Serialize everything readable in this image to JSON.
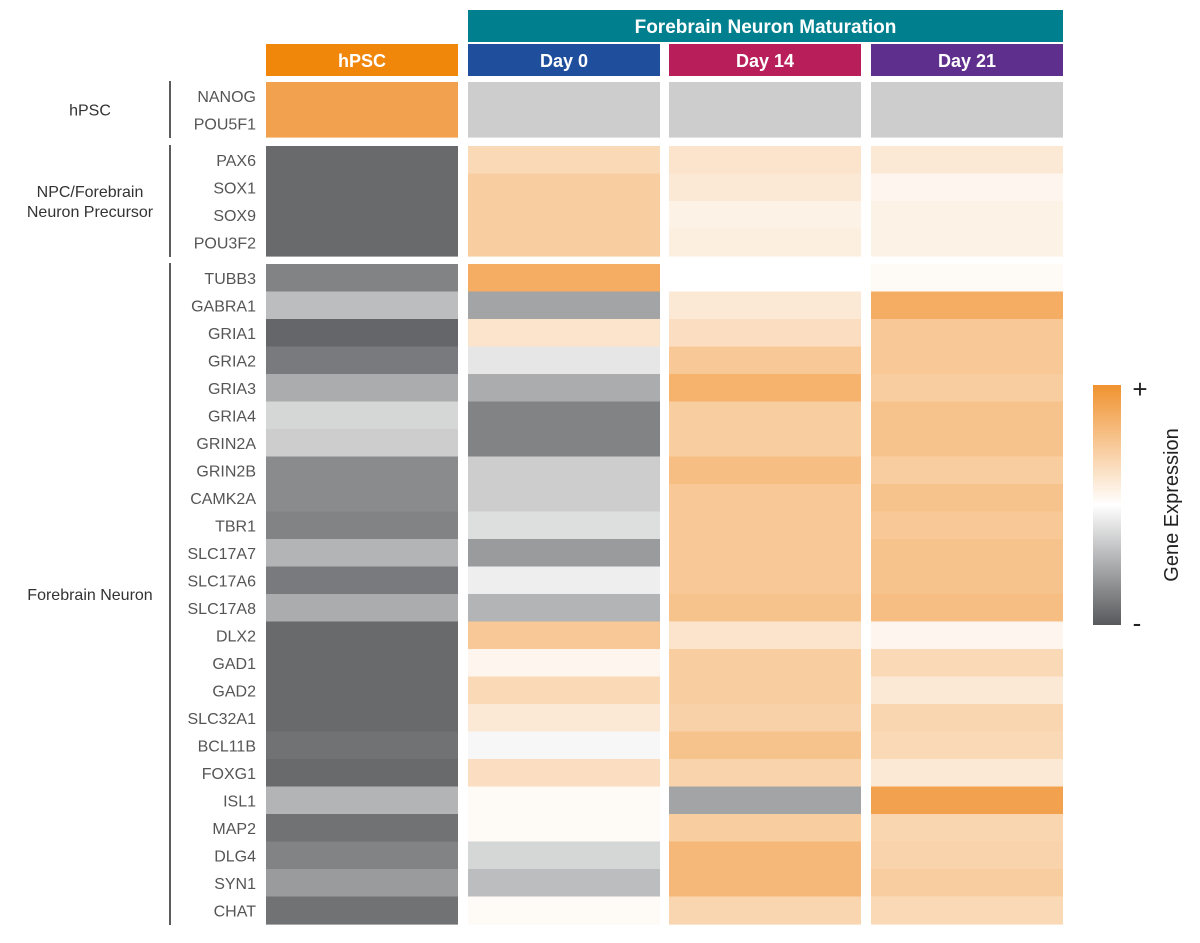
{
  "chart_data": {
    "type": "heatmap",
    "span_header": {
      "label": "Forebrain Neuron Maturation",
      "color": "#00808f"
    },
    "columns": [
      {
        "label": "hPSC",
        "color": "#f0860a"
      },
      {
        "label": "Day 0",
        "color": "#1f4f9c"
      },
      {
        "label": "Day 14",
        "color": "#b81f5a"
      },
      {
        "label": "Day 21",
        "color": "#5e2f8c"
      }
    ],
    "groups": [
      {
        "label": "hPSC",
        "genes": [
          "NANOG",
          "POU5F1"
        ]
      },
      {
        "label": "NPC/Forebrain\nNeuron Precursor",
        "genes": [
          "PAX6",
          "SOX1",
          "SOX9",
          "POU3F2"
        ]
      },
      {
        "label": "Forebrain Neuron",
        "genes": [
          "TUBB3",
          "GABRA1",
          "GRIA1",
          "GRIA2",
          "GRIA3",
          "GRIA4",
          "GRIN2A",
          "GRIN2B",
          "CAMK2A",
          "TBR1",
          "SLC17A7",
          "SLC17A6",
          "SLC17A8",
          "DLX2",
          "GAD1",
          "GAD2",
          "SLC32A1",
          "BCL11B",
          "FOXG1",
          "ISL1",
          "MAP2",
          "DLG4",
          "SYN1",
          "CHAT"
        ]
      }
    ],
    "values": [
      [
        0.85,
        -0.3,
        -0.3,
        -0.3
      ],
      [
        0.85,
        -0.3,
        -0.3,
        -0.3
      ],
      [
        -0.9,
        0.35,
        0.25,
        0.2
      ],
      [
        -0.9,
        0.45,
        0.2,
        0.08
      ],
      [
        -0.9,
        0.45,
        0.12,
        0.12
      ],
      [
        -0.9,
        0.45,
        0.15,
        0.12
      ],
      [
        -0.75,
        0.75,
        0.0,
        0.05
      ],
      [
        -0.4,
        -0.55,
        0.2,
        0.75
      ],
      [
        -0.92,
        0.25,
        0.3,
        0.5
      ],
      [
        -0.8,
        -0.15,
        0.5,
        0.5
      ],
      [
        -0.5,
        -0.5,
        0.7,
        0.45
      ],
      [
        -0.25,
        -0.75,
        0.45,
        0.55
      ],
      [
        -0.3,
        -0.75,
        0.45,
        0.55
      ],
      [
        -0.7,
        -0.3,
        0.6,
        0.45
      ],
      [
        -0.7,
        -0.3,
        0.5,
        0.55
      ],
      [
        -0.75,
        -0.2,
        0.5,
        0.5
      ],
      [
        -0.45,
        -0.6,
        0.5,
        0.55
      ],
      [
        -0.8,
        -0.1,
        0.5,
        0.55
      ],
      [
        -0.5,
        -0.45,
        0.55,
        0.6
      ],
      [
        -0.9,
        0.5,
        0.25,
        0.08
      ],
      [
        -0.9,
        0.08,
        0.45,
        0.35
      ],
      [
        -0.9,
        0.35,
        0.45,
        0.2
      ],
      [
        -0.9,
        0.2,
        0.42,
        0.38
      ],
      [
        -0.85,
        -0.05,
        0.55,
        0.35
      ],
      [
        -0.9,
        0.3,
        0.4,
        0.2
      ],
      [
        -0.45,
        0.05,
        -0.55,
        0.85
      ],
      [
        -0.85,
        0.05,
        0.45,
        0.38
      ],
      [
        -0.75,
        -0.25,
        0.65,
        0.4
      ],
      [
        -0.6,
        -0.4,
        0.65,
        0.45
      ],
      [
        -0.85,
        0.05,
        0.38,
        0.35
      ]
    ],
    "color_scale": {
      "low": "#57595c",
      "mid": "#ffffff",
      "high": "#f0922f",
      "range": [
        -1,
        1
      ]
    },
    "legend": {
      "title": "Gene Expression",
      "high_label": "+",
      "low_label": "-",
      "position": "right"
    }
  }
}
